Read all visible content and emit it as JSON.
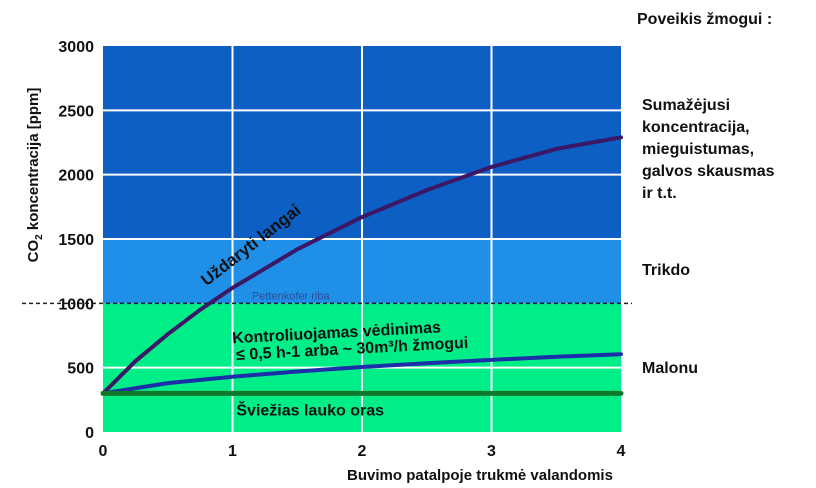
{
  "chart_data": {
    "type": "line",
    "xlabel": "Buvimo patalpoje trukmė valandomis",
    "ylabel_main": "CO",
    "ylabel_sub": "2",
    "ylabel_rest": " koncentracija [ppm]",
    "xlim": [
      0,
      4
    ],
    "ylim": [
      0,
      3000
    ],
    "x_ticks": [
      "0",
      "1",
      "2",
      "3",
      "4"
    ],
    "y_ticks": [
      "0",
      "500",
      "1000",
      "1500",
      "2000",
      "2500",
      "3000"
    ],
    "grid": true,
    "zones": [
      {
        "from": 0,
        "to": 1000,
        "color": "#00ee88"
      },
      {
        "from": 1000,
        "to": 1500,
        "color": "#1f8fe8"
      },
      {
        "from": 1500,
        "to": 3000,
        "color": "#0d5fc4"
      }
    ],
    "threshold": {
      "value": 1000,
      "label": "Pettenkofer riba",
      "color": "#2a4f9a"
    },
    "series": [
      {
        "name": "Uždaryti langai",
        "color": "#3a1866",
        "x": [
          0,
          0.25,
          0.5,
          0.75,
          1,
          1.5,
          2,
          2.5,
          3,
          3.5,
          4
        ],
        "y": [
          300,
          550,
          760,
          950,
          1120,
          1420,
          1670,
          1880,
          2060,
          2200,
          2290
        ]
      },
      {
        "name": "Kontroliuojamas vėdinimas ≤ 0,5 h-1 arba ~ 30m³/h žmogui",
        "name_line1": "Kontroliuojamas vėdinimas",
        "name_line2": "≤ 0,5 h-1 arba ~ 30m³/h žmogui",
        "color": "#1a2fa8",
        "x": [
          0,
          0.5,
          1,
          1.5,
          2,
          2.5,
          3,
          3.5,
          4
        ],
        "y": [
          300,
          380,
          430,
          470,
          505,
          535,
          560,
          585,
          605
        ]
      },
      {
        "name": "Šviežias lauko oras",
        "color": "#11782a",
        "x": [
          0,
          4
        ],
        "y": [
          300,
          300
        ]
      }
    ]
  },
  "side_panel": {
    "heading": "Poveikis žmogui :",
    "effect_high": [
      "Sumažėjusi",
      "koncentracija,",
      "mieguistumas,",
      "galvos skausmas",
      "ir t.t."
    ],
    "effect_mid": "Trikdo",
    "effect_low": "Malonu"
  }
}
